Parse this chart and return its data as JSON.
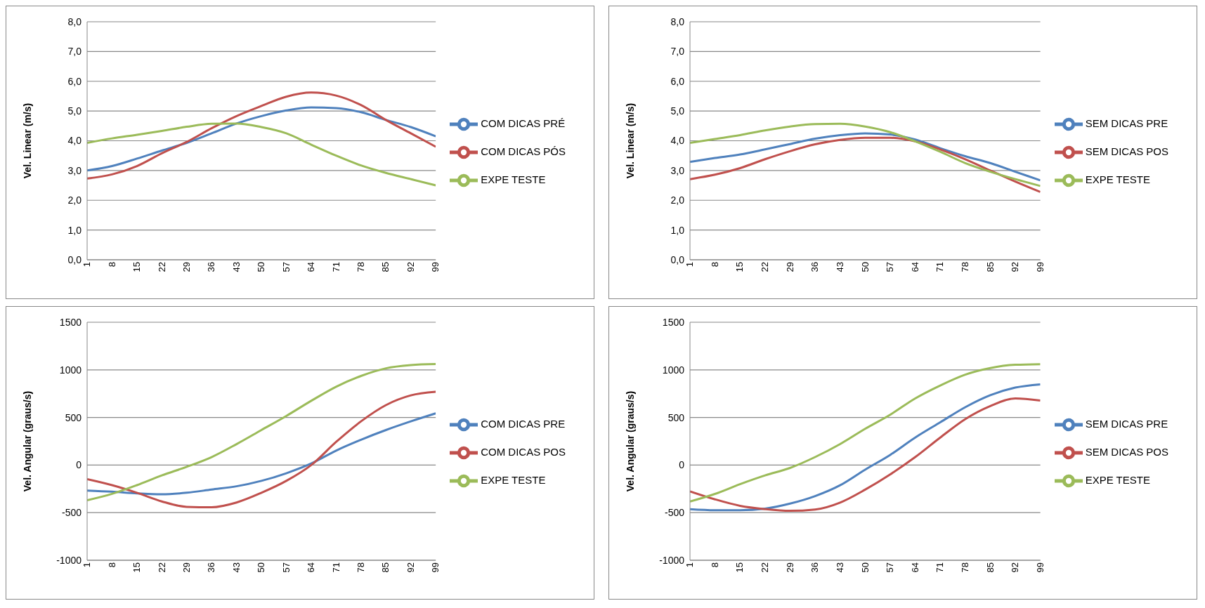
{
  "chart_data": [
    {
      "type": "line",
      "ylabel": "Vel. Linear (m/s)",
      "x": [
        1,
        8,
        15,
        22,
        29,
        36,
        43,
        50,
        57,
        64,
        71,
        78,
        85,
        92,
        99
      ],
      "xlim": [
        1,
        99
      ],
      "xticks": [
        1,
        8,
        15,
        22,
        29,
        36,
        43,
        50,
        57,
        64,
        71,
        78,
        85,
        92,
        99
      ],
      "ylim": [
        0,
        8
      ],
      "yticks": [
        {
          "value": 0,
          "label": "0,0"
        },
        {
          "value": 1,
          "label": "1,0"
        },
        {
          "value": 2,
          "label": "2,0"
        },
        {
          "value": 3,
          "label": "3,0"
        },
        {
          "value": 4,
          "label": "4,0"
        },
        {
          "value": 5,
          "label": "5,0"
        },
        {
          "value": 6,
          "label": "6,0"
        },
        {
          "value": 7,
          "label": "7,0"
        },
        {
          "value": 8,
          "label": "8,0"
        }
      ],
      "grid": "y",
      "legend": "right",
      "series": [
        {
          "name": "COM DICAS PRÉ",
          "color": "#4f81bd",
          "values": [
            3.0,
            3.15,
            3.4,
            3.67,
            3.93,
            4.25,
            4.58,
            4.83,
            5.02,
            5.12,
            5.1,
            4.96,
            4.7,
            4.46,
            4.15
          ]
        },
        {
          "name": "COM DICAS PÓS",
          "color": "#c0504d",
          "values": [
            2.73,
            2.87,
            3.15,
            3.58,
            3.96,
            4.42,
            4.83,
            5.17,
            5.48,
            5.62,
            5.52,
            5.2,
            4.7,
            4.25,
            3.8
          ]
        },
        {
          "name": "EXPE TESTE",
          "color": "#9bbb59",
          "values": [
            3.93,
            4.08,
            4.2,
            4.33,
            4.47,
            4.57,
            4.58,
            4.46,
            4.25,
            3.87,
            3.5,
            3.17,
            2.92,
            2.71,
            2.5
          ]
        }
      ]
    },
    {
      "type": "line",
      "ylabel": "Vel. Linear (m/s)",
      "x": [
        1,
        8,
        15,
        22,
        29,
        36,
        43,
        50,
        57,
        64,
        71,
        78,
        85,
        92,
        99
      ],
      "xlim": [
        1,
        99
      ],
      "xticks": [
        1,
        8,
        15,
        22,
        29,
        36,
        43,
        50,
        57,
        64,
        71,
        78,
        85,
        92,
        99
      ],
      "ylim": [
        0,
        8
      ],
      "yticks": [
        {
          "value": 0,
          "label": "0,0"
        },
        {
          "value": 1,
          "label": "1,0"
        },
        {
          "value": 2,
          "label": "2,0"
        },
        {
          "value": 3,
          "label": "3,0"
        },
        {
          "value": 4,
          "label": "4,0"
        },
        {
          "value": 5,
          "label": "5,0"
        },
        {
          "value": 6,
          "label": "6,0"
        },
        {
          "value": 7,
          "label": "7,0"
        },
        {
          "value": 8,
          "label": "8,0"
        }
      ],
      "grid": "y",
      "legend": "right",
      "series": [
        {
          "name": "SEM DICAS PRE",
          "color": "#4f81bd",
          "values": [
            3.29,
            3.42,
            3.54,
            3.71,
            3.89,
            4.07,
            4.19,
            4.25,
            4.21,
            4.04,
            3.75,
            3.48,
            3.25,
            2.96,
            2.67
          ]
        },
        {
          "name": "SEM DICAS POS",
          "color": "#c0504d",
          "values": [
            2.71,
            2.86,
            3.08,
            3.38,
            3.65,
            3.88,
            4.03,
            4.1,
            4.1,
            3.98,
            3.71,
            3.38,
            3.0,
            2.63,
            2.28
          ]
        },
        {
          "name": "EXPE TESTE",
          "color": "#9bbb59",
          "values": [
            3.93,
            4.06,
            4.19,
            4.35,
            4.48,
            4.56,
            4.57,
            4.48,
            4.29,
            3.98,
            3.63,
            3.25,
            2.96,
            2.71,
            2.48
          ]
        }
      ]
    },
    {
      "type": "line",
      "ylabel": "Vel. Angular (graus/s)",
      "x": [
        1,
        8,
        15,
        22,
        29,
        36,
        43,
        50,
        57,
        64,
        71,
        78,
        85,
        92,
        99
      ],
      "xlim": [
        1,
        99
      ],
      "xticks": [
        1,
        8,
        15,
        22,
        29,
        36,
        43,
        50,
        57,
        64,
        71,
        78,
        85,
        92,
        99
      ],
      "ylim": [
        -1000,
        1500
      ],
      "yticks": [
        -1000,
        -500,
        0,
        500,
        1000,
        1500
      ],
      "grid": "y",
      "legend": "right",
      "series": [
        {
          "name": "COM DICAS PRE",
          "color": "#4f81bd",
          "values": [
            -268,
            -280,
            -298,
            -307,
            -291,
            -257,
            -223,
            -166,
            -86,
            16,
            152,
            266,
            368,
            459,
            543
          ]
        },
        {
          "name": "COM DICAS POS",
          "color": "#c0504d",
          "values": [
            -148,
            -211,
            -291,
            -382,
            -439,
            -443,
            -393,
            -291,
            -166,
            0,
            243,
            459,
            630,
            732,
            770
          ]
        },
        {
          "name": "EXPE TESTE",
          "color": "#9bbb59",
          "values": [
            -370,
            -302,
            -211,
            -109,
            -18,
            84,
            220,
            368,
            516,
            675,
            823,
            936,
            1016,
            1050,
            1061
          ]
        }
      ]
    },
    {
      "type": "line",
      "ylabel": "Vel. Angular (graus/s)",
      "x": [
        1,
        8,
        15,
        22,
        29,
        36,
        43,
        50,
        57,
        64,
        71,
        78,
        85,
        92,
        99
      ],
      "xlim": [
        1,
        99
      ],
      "xticks": [
        1,
        8,
        15,
        22,
        29,
        36,
        43,
        50,
        57,
        64,
        71,
        78,
        85,
        92,
        99
      ],
      "ylim": [
        -1000,
        1500
      ],
      "yticks": [
        -1000,
        -500,
        0,
        500,
        1000,
        1500
      ],
      "grid": "y",
      "legend": "right",
      "series": [
        {
          "name": "SEM DICAS PRE",
          "color": "#4f81bd",
          "values": [
            -463,
            -474,
            -474,
            -458,
            -405,
            -326,
            -212,
            -48,
            107,
            289,
            449,
            608,
            734,
            814,
            848
          ]
        },
        {
          "name": "SEM DICAS POS",
          "color": "#c0504d",
          "values": [
            -276,
            -360,
            -428,
            -463,
            -481,
            -467,
            -394,
            -258,
            -98,
            84,
            289,
            483,
            620,
            700,
            677
          ]
        },
        {
          "name": "EXPE TESTE",
          "color": "#9bbb59",
          "values": [
            -383,
            -303,
            -201,
            -109,
            -30,
            84,
            221,
            381,
            529,
            700,
            836,
            950,
            1019,
            1053,
            1060
          ]
        }
      ]
    }
  ]
}
